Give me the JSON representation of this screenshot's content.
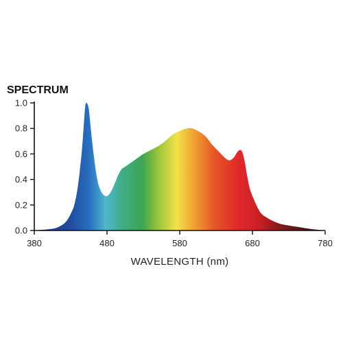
{
  "chart_data": {
    "type": "area",
    "title": "SPECTRUM",
    "xlabel": "WAVELENGTH (nm)",
    "ylabel": "",
    "xlim": [
      380,
      780
    ],
    "ylim": [
      0,
      1.0
    ],
    "x_ticks": [
      "380",
      "480",
      "580",
      "680",
      "780"
    ],
    "y_ticks": [
      "0.0",
      "0.2",
      "0.4",
      "0.6",
      "0.8",
      "1.0"
    ],
    "grid": false,
    "legend": "none",
    "fill": "wavelength rainbow gradient (blue to dark red)",
    "x": [
      380,
      400,
      410,
      420,
      425,
      430,
      435,
      440,
      445,
      448,
      450,
      452,
      455,
      458,
      462,
      466,
      470,
      475,
      480,
      485,
      490,
      495,
      500,
      505,
      510,
      515,
      520,
      525,
      530,
      540,
      550,
      560,
      570,
      580,
      590,
      597,
      605,
      615,
      625,
      635,
      642,
      648,
      654,
      660,
      664,
      667,
      670,
      673,
      678,
      690,
      700,
      710,
      720,
      740,
      760,
      780
    ],
    "y": [
      0.0,
      0.01,
      0.02,
      0.05,
      0.08,
      0.13,
      0.2,
      0.35,
      0.6,
      0.82,
      0.97,
      1.0,
      0.95,
      0.78,
      0.58,
      0.42,
      0.33,
      0.28,
      0.27,
      0.3,
      0.36,
      0.43,
      0.48,
      0.5,
      0.52,
      0.54,
      0.56,
      0.58,
      0.6,
      0.63,
      0.66,
      0.7,
      0.75,
      0.78,
      0.8,
      0.8,
      0.78,
      0.74,
      0.67,
      0.61,
      0.57,
      0.55,
      0.57,
      0.62,
      0.63,
      0.6,
      0.52,
      0.42,
      0.3,
      0.15,
      0.1,
      0.07,
      0.05,
      0.03,
      0.012,
      0.0
    ]
  }
}
